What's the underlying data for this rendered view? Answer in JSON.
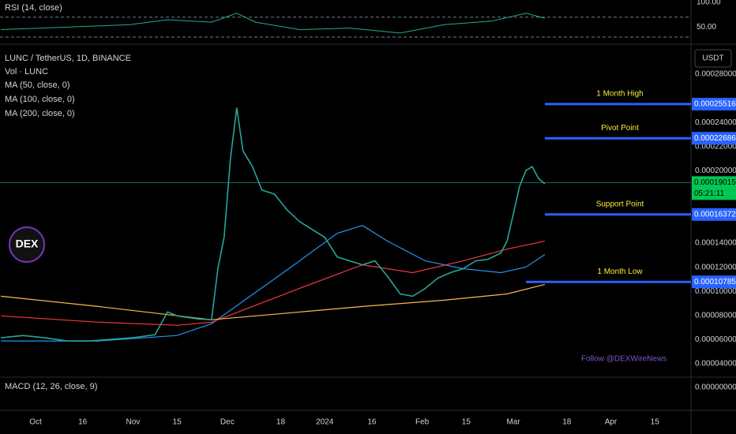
{
  "chart_data": {
    "type": "line",
    "title": "LUNC / TetherUS, 1D, BINANCE",
    "volume_label": "Vol · LUNC",
    "currency": "USDT",
    "xlim": [
      -11.3,
      208.5
    ],
    "xticks": [
      {
        "value": 0,
        "label": "Oct"
      },
      {
        "value": 15,
        "label": "16"
      },
      {
        "value": 31,
        "label": "Nov"
      },
      {
        "value": 45,
        "label": "15"
      },
      {
        "value": 61,
        "label": "Dec"
      },
      {
        "value": 78,
        "label": "18"
      },
      {
        "value": 92,
        "label": "2024"
      },
      {
        "value": 107,
        "label": "16"
      },
      {
        "value": 123,
        "label": "Feb"
      },
      {
        "value": 137,
        "label": "15"
      },
      {
        "value": 152,
        "label": "Mar"
      },
      {
        "value": 169,
        "label": "18"
      },
      {
        "value": 183,
        "label": "Apr"
      },
      {
        "value": 197,
        "label": "15"
      }
    ],
    "ylim": [
      2.89e-05,
      0.0003048
    ],
    "yticks": [
      {
        "value": 0.00028,
        "label": "0.00028000"
      },
      {
        "value": 0.00024,
        "label": "0.00024000"
      },
      {
        "value": 0.00022,
        "label": "0.00022000"
      },
      {
        "value": 0.0002,
        "label": "0.00020000"
      },
      {
        "value": 0.00014,
        "label": "0.00014000"
      },
      {
        "value": 0.00012,
        "label": "0.00012000"
      },
      {
        "value": 0.0001,
        "label": "0.00010000"
      },
      {
        "value": 8e-05,
        "label": "0.00008000"
      },
      {
        "value": 6e-05,
        "label": "0.00006000"
      },
      {
        "value": 4e-05,
        "label": "0.00004000"
      }
    ],
    "close": {
      "color": "#26a69a",
      "x": [
        -11,
        -4,
        3,
        10,
        17,
        24,
        31,
        38,
        42,
        45,
        52,
        56,
        58,
        60,
        62,
        64,
        66,
        69,
        72,
        76,
        80,
        84,
        88,
        92,
        96,
        100,
        104,
        108,
        112,
        116,
        120,
        124,
        128,
        132,
        136,
        140,
        144,
        148,
        150,
        152,
        154,
        156,
        158,
        160,
        162
      ],
      "values": [
        6.15e-05,
        6.34e-05,
        6.15e-05,
        5.89e-05,
        5.89e-05,
        6.02e-05,
        6.15e-05,
        6.41e-05,
        8.3e-05,
        7.97e-05,
        7.71e-05,
        7.65e-05,
        0.0001188,
        0.0001448,
        0.0002099,
        0.0002522,
        0.0002164,
        0.0002034,
        0.0001839,
        0.0001806,
        0.0001676,
        0.0001578,
        0.0001513,
        0.0001448,
        0.0001285,
        0.0001253,
        0.000122,
        0.0001253,
        0.0001123,
        9.79e-05,
        9.6e-05,
        0.0001025,
        0.000111,
        0.0001155,
        0.0001188,
        0.0001253,
        0.0001266,
        0.0001318,
        0.0001416,
        0.0001643,
        0.0001871,
        0.0002001,
        0.0002034,
        0.0001936,
        0.0001891
      ]
    },
    "series": [
      {
        "name": "MA (50, close, 0)",
        "color": "#2196f3",
        "x": [
          -11,
          20,
          45,
          56,
          70,
          84,
          96,
          104,
          112,
          124,
          136,
          148,
          156,
          162
        ],
        "values": [
          5.89e-05,
          5.89e-05,
          6.34e-05,
          7.32e-05,
          9.92e-05,
          0.0001253,
          0.0001481,
          0.0001546,
          0.0001416,
          0.0001253,
          0.0001188,
          0.0001155,
          0.0001201,
          0.0001305
        ]
      },
      {
        "name": "MA (100, close, 0)",
        "color": "#f23645",
        "x": [
          -11,
          20,
          45,
          56,
          84,
          104,
          120,
          136,
          150,
          162
        ],
        "values": [
          7.97e-05,
          7.45e-05,
          7.19e-05,
          7.45e-05,
          0.0001025,
          0.000122,
          0.0001155,
          0.0001253,
          0.000135,
          0.0001416
        ]
      },
      {
        "name": "MA (200, close, 0)",
        "color": "#ffb74d",
        "x": [
          -11,
          20,
          56,
          70,
          104,
          130,
          150,
          162
        ],
        "values": [
          9.6e-05,
          8.75e-05,
          7.65e-05,
          7.97e-05,
          8.75e-05,
          9.27e-05,
          9.79e-05,
          0.0001058
        ]
      }
    ],
    "levels": [
      {
        "name": "1 Month High",
        "value": 0.00025516,
        "from": 162
      },
      {
        "name": "Pivot Point",
        "value": 0.00022686,
        "from": 162
      },
      {
        "name": "Support Point",
        "value": 0.00016372,
        "from": 162
      },
      {
        "name": "1 Month Low",
        "value": 0.00010785,
        "from": 156
      }
    ],
    "level_color": "#2962ff",
    "last_price": 0.00019015,
    "countdown": "05:21:11",
    "rsi": {
      "title": "RSI (14, close)",
      "color": "#26a69a",
      "ylim": [
        15.6,
        104.7
      ],
      "yticks": [
        {
          "value": 100,
          "label": "100.00"
        },
        {
          "value": 50,
          "label": "50.00"
        }
      ],
      "bands": [
        70,
        30
      ],
      "x": [
        -11,
        10,
        30,
        42,
        56,
        64,
        70,
        84,
        100,
        116,
        130,
        145,
        156,
        162
      ],
      "values": [
        45,
        50,
        55,
        65,
        60,
        78,
        60,
        45,
        48,
        38,
        55,
        62,
        78,
        68
      ]
    },
    "macd": {
      "title": "MACD (12, 26, close, 9)",
      "ylim": [
        -1.55e-05,
        7e-06
      ],
      "yticks": [
        {
          "value": 0,
          "label": "0.00000000"
        }
      ]
    },
    "logo_text": "DEX",
    "watermark_text": "Follow @DEXWireNews"
  }
}
